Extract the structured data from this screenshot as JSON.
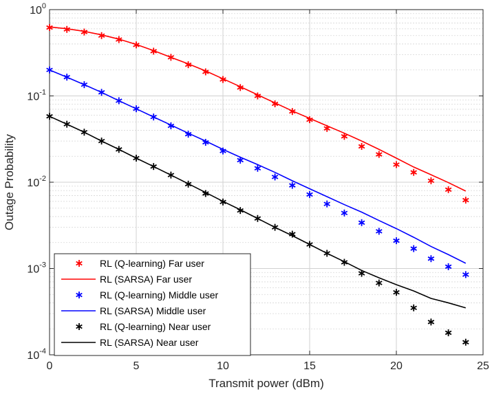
{
  "chart_data": {
    "type": "line",
    "title": "",
    "xlabel": "Transmit power (dBm)",
    "ylabel": "Outage Probability",
    "xlim": [
      0,
      25
    ],
    "ylim": [
      0.0001,
      1
    ],
    "yscale": "log",
    "grid": true,
    "legend_position": "bottom-left",
    "x_ticks": [
      0,
      5,
      10,
      15,
      20,
      25
    ],
    "y_ticks": [
      {
        "value": 1,
        "base": "10",
        "exp": "0"
      },
      {
        "value": 0.1,
        "base": "10",
        "exp": "-1"
      },
      {
        "value": 0.01,
        "base": "10",
        "exp": "-2"
      },
      {
        "value": 0.001,
        "base": "10",
        "exp": "-3"
      },
      {
        "value": 0.0001,
        "base": "10",
        "exp": "-4"
      }
    ],
    "series": [
      {
        "name": "RL (Q-learning) Far user",
        "style": "marker",
        "color": "#ff0000",
        "x": [
          0,
          1,
          2,
          3,
          4,
          5,
          6,
          7,
          8,
          9,
          10,
          11,
          12,
          13,
          14,
          15,
          16,
          17,
          18,
          19,
          20,
          21,
          22,
          23,
          24
        ],
        "y": [
          0.62,
          0.59,
          0.55,
          0.5,
          0.45,
          0.39,
          0.33,
          0.28,
          0.23,
          0.19,
          0.155,
          0.125,
          0.1,
          0.081,
          0.066,
          0.053,
          0.042,
          0.034,
          0.026,
          0.021,
          0.016,
          0.013,
          0.0104,
          0.0082,
          0.0062
        ]
      },
      {
        "name": "RL (SARSA) Far user",
        "style": "line",
        "color": "#ff0000",
        "x": [
          0,
          1,
          2,
          3,
          4,
          5,
          6,
          7,
          8,
          9,
          10,
          11,
          12,
          13,
          14,
          15,
          16,
          17,
          18,
          19,
          20,
          21,
          22,
          23,
          24
        ],
        "y": [
          0.63,
          0.6,
          0.56,
          0.51,
          0.455,
          0.395,
          0.335,
          0.28,
          0.235,
          0.195,
          0.158,
          0.128,
          0.103,
          0.083,
          0.067,
          0.055,
          0.045,
          0.037,
          0.03,
          0.024,
          0.019,
          0.015,
          0.0122,
          0.0099,
          0.0079
        ]
      },
      {
        "name": "RL (Q-learning) Middle user",
        "style": "marker",
        "color": "#0000ff",
        "x": [
          0,
          1,
          2,
          3,
          4,
          5,
          6,
          7,
          8,
          9,
          10,
          11,
          12,
          13,
          14,
          15,
          16,
          17,
          18,
          19,
          20,
          21,
          22,
          23,
          24
        ],
        "y": [
          0.2,
          0.165,
          0.135,
          0.11,
          0.088,
          0.071,
          0.057,
          0.045,
          0.036,
          0.029,
          0.023,
          0.018,
          0.0145,
          0.0115,
          0.0092,
          0.0072,
          0.0056,
          0.0044,
          0.0034,
          0.0027,
          0.0021,
          0.0017,
          0.0013,
          0.00105,
          0.00085
        ]
      },
      {
        "name": "RL (SARSA) Middle user",
        "style": "line",
        "color": "#0000ff",
        "x": [
          0,
          1,
          2,
          3,
          4,
          5,
          6,
          7,
          8,
          9,
          10,
          11,
          12,
          13,
          14,
          15,
          16,
          17,
          18,
          19,
          20,
          21,
          22,
          23,
          24
        ],
        "y": [
          0.2,
          0.165,
          0.135,
          0.11,
          0.088,
          0.071,
          0.057,
          0.046,
          0.037,
          0.03,
          0.024,
          0.0195,
          0.016,
          0.013,
          0.0104,
          0.0084,
          0.0068,
          0.0055,
          0.0045,
          0.0036,
          0.0029,
          0.0023,
          0.0018,
          0.00145,
          0.00115
        ]
      },
      {
        "name": "RL (Q-learning) Near user",
        "style": "marker",
        "color": "#000000",
        "x": [
          0,
          1,
          2,
          3,
          4,
          5,
          6,
          7,
          8,
          9,
          10,
          11,
          12,
          13,
          14,
          15,
          16,
          17,
          18,
          19,
          20,
          21,
          22,
          23,
          24
        ],
        "y": [
          0.058,
          0.047,
          0.038,
          0.03,
          0.024,
          0.019,
          0.0152,
          0.0121,
          0.0095,
          0.0074,
          0.0059,
          0.0047,
          0.0038,
          0.003,
          0.0025,
          0.0019,
          0.0015,
          0.00118,
          0.00088,
          0.00068,
          0.00053,
          0.00035,
          0.00024,
          0.00018,
          0.00014
        ]
      },
      {
        "name": "RL (SARSA) Near user",
        "style": "line",
        "color": "#000000",
        "x": [
          0,
          1,
          2,
          3,
          4,
          5,
          6,
          7,
          8,
          9,
          10,
          11,
          12,
          13,
          14,
          15,
          16,
          17,
          18,
          19,
          20,
          21,
          22,
          23,
          24
        ],
        "y": [
          0.058,
          0.047,
          0.038,
          0.03,
          0.024,
          0.019,
          0.0152,
          0.0121,
          0.0096,
          0.0076,
          0.006,
          0.0048,
          0.0038,
          0.003,
          0.0024,
          0.0019,
          0.0015,
          0.0012,
          0.00095,
          0.00078,
          0.00065,
          0.00055,
          0.00045,
          0.0004,
          0.00035
        ]
      }
    ]
  }
}
